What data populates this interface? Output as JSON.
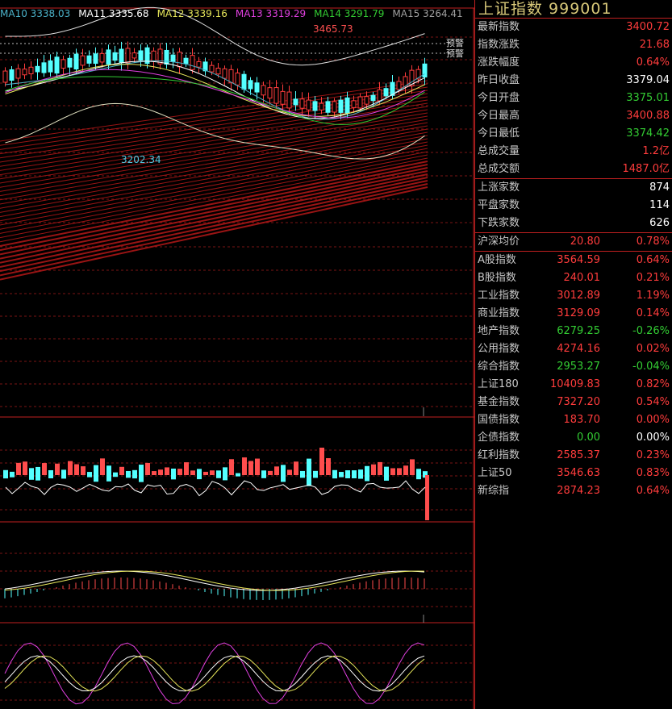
{
  "legend": [
    {
      "label": "MA10 3338.03",
      "color": "#4bb2c9"
    },
    {
      "label": "MA11 3335.68",
      "color": "#ffffff"
    },
    {
      "label": "MA12 3339.16",
      "color": "#e6e65a"
    },
    {
      "label": "MA13 3319.29",
      "color": "#e040e0"
    },
    {
      "label": "MA14 3291.79",
      "color": "#33cc33"
    },
    {
      "label": "MA15 3264.41",
      "color": "#a0a0a0"
    }
  ],
  "annotations": {
    "high": "3465.73",
    "low": "3202.34",
    "alert1": "预警",
    "alert2": "预警"
  },
  "panel": {
    "title": "上证指数 999001",
    "stats": [
      {
        "label": "最新指数",
        "value": "3400.72",
        "color": "red"
      },
      {
        "label": "指数涨跌",
        "value": "21.68",
        "color": "red"
      },
      {
        "label": "涨跌幅度",
        "value": "0.64%",
        "color": "red"
      },
      {
        "label": "昨日收盘",
        "value": "3379.04",
        "color": "white"
      },
      {
        "label": "今日开盘",
        "value": "3375.01",
        "color": "green"
      },
      {
        "label": "今日最高",
        "value": "3400.88",
        "color": "red"
      },
      {
        "label": "今日最低",
        "value": "3374.42",
        "color": "green"
      },
      {
        "label": "总成交量",
        "value": "1.2亿",
        "color": "red"
      },
      {
        "label": "总成交额",
        "value": "1487.0亿",
        "color": "red"
      }
    ],
    "breadth": [
      {
        "label": "上涨家数",
        "value": "874",
        "color": "white"
      },
      {
        "label": "平盘家数",
        "value": "114",
        "color": "white"
      },
      {
        "label": "下跌家数",
        "value": "626",
        "color": "white"
      }
    ],
    "avg": {
      "label": "沪深均价",
      "value": "20.80",
      "pct": "0.78%"
    },
    "indices": [
      {
        "label": "A股指数",
        "value": "3564.59",
        "pct": "0.64%",
        "color": "red"
      },
      {
        "label": "B股指数",
        "value": "240.01",
        "pct": "0.21%",
        "color": "red"
      },
      {
        "label": "工业指数",
        "value": "3012.89",
        "pct": "1.19%",
        "color": "red"
      },
      {
        "label": "商业指数",
        "value": "3129.09",
        "pct": "0.14%",
        "color": "red"
      },
      {
        "label": "地产指数",
        "value": "6279.25",
        "pct": "-0.26%",
        "color": "green"
      },
      {
        "label": "公用指数",
        "value": "4274.16",
        "pct": "0.02%",
        "color": "red"
      },
      {
        "label": "综合指数",
        "value": "2953.27",
        "pct": "-0.04%",
        "color": "green"
      },
      {
        "label": "上证180",
        "value": "10409.83",
        "pct": "0.82%",
        "color": "red"
      },
      {
        "label": "基金指数",
        "value": "7327.20",
        "pct": "0.54%",
        "color": "red"
      },
      {
        "label": "国债指数",
        "value": "183.70",
        "pct": "0.00%",
        "color": "red"
      },
      {
        "label": "企债指数",
        "value": "0.00",
        "pct": "0.00%",
        "color": "green"
      },
      {
        "label": "红利指数",
        "value": "2585.37",
        "pct": "0.23%",
        "color": "red"
      },
      {
        "label": "上证50",
        "value": "3546.63",
        "pct": "0.83%",
        "color": "red"
      },
      {
        "label": "新综指",
        "value": "2874.23",
        "pct": "0.64%",
        "color": "red"
      }
    ]
  }
}
